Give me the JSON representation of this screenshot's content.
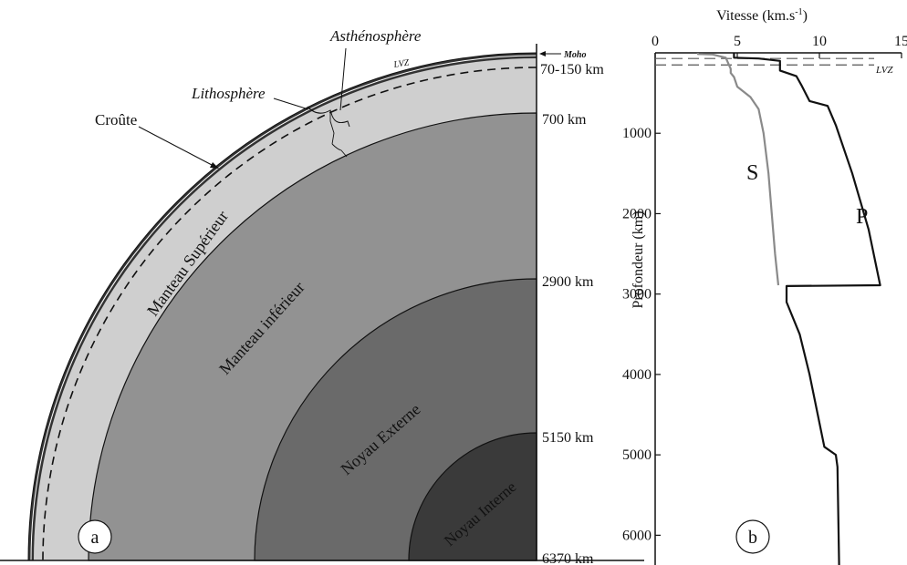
{
  "panel_a": {
    "badge": "a",
    "depth_labels": [
      "Moho",
      "70-150 km",
      "700 km",
      "2900 km",
      "5150 km",
      "6370 km"
    ],
    "layer_labels": {
      "lithosphere": "Lithosphère",
      "asthenosphere": "Asthénosphère",
      "crust": "Croûte",
      "lvz": "LVZ",
      "upper_mantle": "Manteau Supérieur",
      "lower_mantle": "Manteau inférieur",
      "outer_core": "Noyau Externe",
      "inner_core": "Noyau Interne"
    },
    "colors": {
      "crust": "#333333",
      "upper_mantle": "#cfcfcf",
      "lower_mantle": "#929292",
      "outer_core": "#6a6a6a",
      "inner_core": "#3a3a3a"
    }
  },
  "panel_b": {
    "badge": "b",
    "lvz_label": "LVZ",
    "chart_data": {
      "type": "line",
      "title": "",
      "xlabel": "Vitesse (km.s-1)",
      "xlabel_main": "Vitesse (km.s",
      "xlabel_sup": "-1",
      "xlabel_end": ")",
      "ylabel": "Profondeur (km)",
      "xlim": [
        0,
        15
      ],
      "ylim": [
        0,
        6370
      ],
      "y_inverted": true,
      "x_ticks": [
        0,
        5,
        10,
        15
      ],
      "y_ticks": [
        1000,
        2000,
        3000,
        4000,
        5000,
        6000
      ],
      "grid": false,
      "lvz_depths": [
        70,
        150
      ],
      "series": [
        {
          "name": "P",
          "color": "#111111",
          "points": [
            [
              4.8,
              0
            ],
            [
              4.8,
              60
            ],
            [
              6.3,
              70
            ],
            [
              7.6,
              100
            ],
            [
              7.6,
              120
            ],
            [
              7.6,
              220
            ],
            [
              8.6,
              290
            ],
            [
              8.9,
              400
            ],
            [
              9.4,
              600
            ],
            [
              10.5,
              660
            ],
            [
              11.0,
              900
            ],
            [
              12.0,
              1500
            ],
            [
              13.0,
              2200
            ],
            [
              13.7,
              2890
            ],
            [
              8.0,
              2900
            ],
            [
              8.0,
              3100
            ],
            [
              8.8,
              3500
            ],
            [
              9.4,
              4000
            ],
            [
              9.9,
              4500
            ],
            [
              10.3,
              4900
            ],
            [
              11.0,
              5000
            ],
            [
              11.1,
              5150
            ],
            [
              11.2,
              6370
            ]
          ]
        },
        {
          "name": "S",
          "color": "#8a8a8a",
          "points": [
            [
              2.6,
              0
            ],
            [
              2.6,
              15
            ],
            [
              3.5,
              20
            ],
            [
              4.3,
              60
            ],
            [
              4.6,
              200
            ],
            [
              4.6,
              250
            ],
            [
              4.8,
              300
            ],
            [
              5.0,
              420
            ],
            [
              5.8,
              550
            ],
            [
              6.3,
              700
            ],
            [
              6.6,
              1000
            ],
            [
              6.9,
              1500
            ],
            [
              7.1,
              2000
            ],
            [
              7.3,
              2500
            ],
            [
              7.5,
              2890
            ]
          ]
        }
      ]
    }
  }
}
